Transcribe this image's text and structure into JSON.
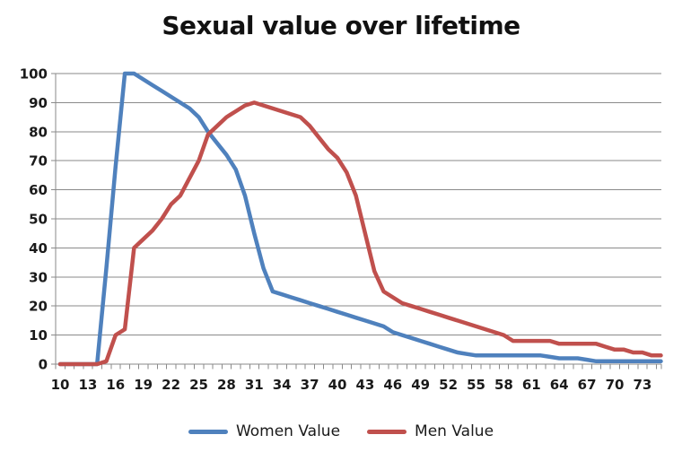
{
  "title": "Sexual value over lifetime",
  "chart_data": {
    "type": "line",
    "title": "Sexual value over lifetime",
    "xlabel": "",
    "ylabel": "",
    "ylim": [
      0,
      100
    ],
    "grid": "horizontal",
    "legend_position": "bottom",
    "x": [
      10,
      11,
      12,
      13,
      14,
      15,
      16,
      17,
      18,
      19,
      20,
      21,
      22,
      23,
      24,
      25,
      26,
      27,
      28,
      29,
      30,
      31,
      32,
      33,
      34,
      35,
      36,
      37,
      38,
      39,
      40,
      41,
      42,
      43,
      44,
      45,
      46,
      47,
      48,
      49,
      50,
      51,
      52,
      53,
      54,
      55,
      56,
      57,
      58,
      59,
      60,
      61,
      62,
      63,
      64,
      65,
      66,
      67,
      68,
      69,
      70,
      71,
      72,
      73,
      74,
      75
    ],
    "x_tick_labels": [
      10,
      13,
      16,
      19,
      22,
      25,
      28,
      31,
      34,
      37,
      40,
      43,
      46,
      49,
      52,
      55,
      58,
      61,
      64,
      67,
      70,
      73
    ],
    "y_ticks": [
      0,
      10,
      20,
      30,
      40,
      50,
      60,
      70,
      80,
      90,
      100
    ],
    "series": [
      {
        "name": "Women Value",
        "color": "#4F81BD",
        "values": [
          0,
          0,
          0,
          0,
          0,
          33,
          68,
          100,
          100,
          98,
          96,
          94,
          92,
          90,
          88,
          85,
          80,
          76,
          72,
          67,
          58,
          45,
          33,
          25,
          24,
          23,
          22,
          21,
          20,
          19,
          18,
          17,
          16,
          15,
          14,
          13,
          11,
          10,
          9,
          8,
          7,
          6,
          5,
          4,
          3.5,
          3,
          3,
          3,
          3,
          3,
          3,
          3,
          3,
          2.5,
          2,
          2,
          2,
          1.5,
          1,
          1,
          1,
          1,
          1,
          1,
          1,
          1
        ]
      },
      {
        "name": "Men Value",
        "color": "#C0504D",
        "values": [
          0,
          0,
          0,
          0,
          0,
          1,
          10,
          12,
          40,
          43,
          46,
          50,
          55,
          58,
          64,
          70,
          79,
          82,
          85,
          87,
          89,
          90,
          89,
          88,
          87,
          86,
          85,
          82,
          78,
          74,
          71,
          66,
          58,
          45,
          32,
          25,
          23,
          21,
          20,
          19,
          18,
          17,
          16,
          15,
          14,
          13,
          12,
          11,
          10,
          8,
          8,
          8,
          8,
          8,
          7,
          7,
          7,
          7,
          7,
          6,
          5,
          5,
          4,
          4,
          3,
          3
        ]
      }
    ]
  },
  "colors": {
    "gridline": "#8a8a8a",
    "axis": "#8a8a8a",
    "label_text": "#1a1a1a",
    "background": "#ffffff",
    "women_line": "#4F81BD",
    "men_line": "#C0504D"
  }
}
